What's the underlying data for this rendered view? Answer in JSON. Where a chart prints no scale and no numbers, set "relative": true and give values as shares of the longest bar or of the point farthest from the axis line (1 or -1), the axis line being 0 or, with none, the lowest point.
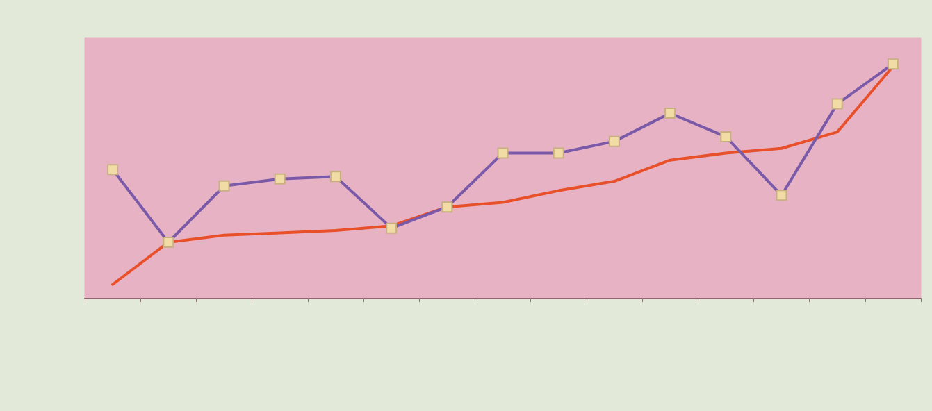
{
  "chart_data": {
    "type": "line",
    "relative": true,
    "categories": [
      null,
      null,
      null,
      null,
      null,
      null,
      null,
      null,
      null,
      null,
      null,
      null,
      null,
      null,
      null
    ],
    "series": [
      {
        "color": "#e8502a",
        "marker": "none",
        "values": [
          0.06,
          0.24,
          0.27,
          0.28,
          0.29,
          0.31,
          0.39,
          0.41,
          0.46,
          0.5,
          0.59,
          0.62,
          0.64,
          0.71,
          0.99
        ]
      },
      {
        "color": "#7a5aa8",
        "marker": "square",
        "values": [
          0.55,
          0.24,
          0.48,
          0.51,
          0.52,
          0.3,
          0.39,
          0.62,
          0.62,
          0.67,
          0.79,
          0.69,
          0.44,
          0.83,
          1
        ]
      }
    ],
    "grid": false
  }
}
